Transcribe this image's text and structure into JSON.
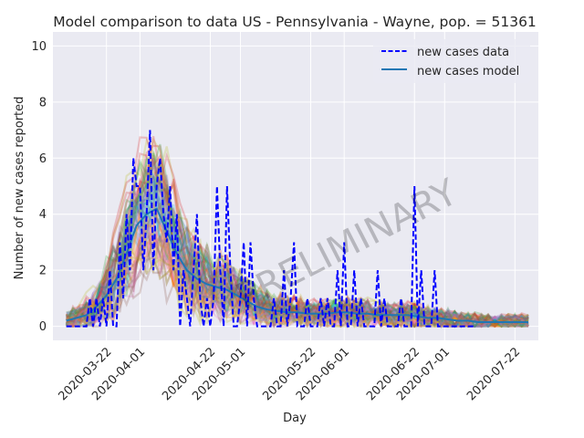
{
  "chart_data": {
    "type": "line",
    "title": "Model comparison to data US - Pennsylvania - Wayne, pop. = 51361",
    "xlabel": "Day",
    "ylabel": "Number of new cases reported",
    "x_range": [
      "2020-03-06",
      "2020-07-29"
    ],
    "ylim": [
      -0.5,
      10.5
    ],
    "y_ticks": [
      0,
      2,
      4,
      6,
      8,
      10
    ],
    "x_ticks": [
      "2020-03-22",
      "2020-04-01",
      "2020-04-22",
      "2020-05-01",
      "2020-05-22",
      "2020-06-01",
      "2020-06-22",
      "2020-07-01",
      "2020-07-22"
    ],
    "grid": true,
    "legend": "top-right",
    "watermark": "PRELIMINARY",
    "series": [
      {
        "name": "new cases data",
        "style": "dashed",
        "color": "#0000ff",
        "points": [
          [
            "2020-03-10",
            0
          ],
          [
            "2020-03-11",
            0
          ],
          [
            "2020-03-12",
            0
          ],
          [
            "2020-03-13",
            0
          ],
          [
            "2020-03-14",
            0
          ],
          [
            "2020-03-15",
            0
          ],
          [
            "2020-03-16",
            0
          ],
          [
            "2020-03-17",
            1
          ],
          [
            "2020-03-18",
            0
          ],
          [
            "2020-03-19",
            1
          ],
          [
            "2020-03-20",
            0
          ],
          [
            "2020-03-21",
            1
          ],
          [
            "2020-03-22",
            0
          ],
          [
            "2020-03-23",
            2
          ],
          [
            "2020-03-24",
            0
          ],
          [
            "2020-03-25",
            0
          ],
          [
            "2020-03-26",
            3
          ],
          [
            "2020-03-27",
            1
          ],
          [
            "2020-03-28",
            4
          ],
          [
            "2020-03-29",
            2
          ],
          [
            "2020-03-30",
            6
          ],
          [
            "2020-03-31",
            5
          ],
          [
            "2020-04-01",
            5
          ],
          [
            "2020-04-02",
            2
          ],
          [
            "2020-04-03",
            4
          ],
          [
            "2020-04-04",
            7
          ],
          [
            "2020-04-05",
            2
          ],
          [
            "2020-04-06",
            5
          ],
          [
            "2020-04-07",
            6
          ],
          [
            "2020-04-08",
            4
          ],
          [
            "2020-04-09",
            3
          ],
          [
            "2020-04-10",
            5
          ],
          [
            "2020-04-11",
            2
          ],
          [
            "2020-04-12",
            4
          ],
          [
            "2020-04-13",
            0
          ],
          [
            "2020-04-14",
            2
          ],
          [
            "2020-04-15",
            1
          ],
          [
            "2020-04-16",
            0
          ],
          [
            "2020-04-17",
            2
          ],
          [
            "2020-04-18",
            4
          ],
          [
            "2020-04-19",
            1
          ],
          [
            "2020-04-20",
            0
          ],
          [
            "2020-04-21",
            1
          ],
          [
            "2020-04-22",
            0
          ],
          [
            "2020-04-23",
            1
          ],
          [
            "2020-04-24",
            5
          ],
          [
            "2020-04-25",
            2
          ],
          [
            "2020-04-26",
            0
          ],
          [
            "2020-04-27",
            5
          ],
          [
            "2020-04-28",
            2
          ],
          [
            "2020-04-29",
            0
          ],
          [
            "2020-04-30",
            0
          ],
          [
            "2020-05-01",
            1
          ],
          [
            "2020-05-02",
            3
          ],
          [
            "2020-05-03",
            0
          ],
          [
            "2020-05-04",
            3
          ],
          [
            "2020-05-05",
            1
          ],
          [
            "2020-05-06",
            0
          ],
          [
            "2020-05-07",
            0
          ],
          [
            "2020-05-08",
            0
          ],
          [
            "2020-05-09",
            0
          ],
          [
            "2020-05-10",
            0
          ],
          [
            "2020-05-11",
            1
          ],
          [
            "2020-05-12",
            0
          ],
          [
            "2020-05-13",
            0
          ],
          [
            "2020-05-14",
            2
          ],
          [
            "2020-05-15",
            0
          ],
          [
            "2020-05-16",
            1
          ],
          [
            "2020-05-17",
            3
          ],
          [
            "2020-05-18",
            0
          ],
          [
            "2020-05-19",
            0
          ],
          [
            "2020-05-20",
            0
          ],
          [
            "2020-05-21",
            1
          ],
          [
            "2020-05-22",
            0
          ],
          [
            "2020-05-23",
            0
          ],
          [
            "2020-05-24",
            0
          ],
          [
            "2020-05-25",
            1
          ],
          [
            "2020-05-26",
            0
          ],
          [
            "2020-05-27",
            1
          ],
          [
            "2020-05-28",
            0
          ],
          [
            "2020-05-29",
            0
          ],
          [
            "2020-05-30",
            2
          ],
          [
            "2020-05-31",
            0
          ],
          [
            "2020-06-01",
            3
          ],
          [
            "2020-06-02",
            0
          ],
          [
            "2020-06-03",
            0
          ],
          [
            "2020-06-04",
            2
          ],
          [
            "2020-06-05",
            0
          ],
          [
            "2020-06-06",
            1
          ],
          [
            "2020-06-07",
            0
          ],
          [
            "2020-06-08",
            0
          ],
          [
            "2020-06-09",
            0
          ],
          [
            "2020-06-10",
            0
          ],
          [
            "2020-06-11",
            2
          ],
          [
            "2020-06-12",
            0
          ],
          [
            "2020-06-13",
            1
          ],
          [
            "2020-06-14",
            0
          ],
          [
            "2020-06-15",
            0
          ],
          [
            "2020-06-16",
            0
          ],
          [
            "2020-06-17",
            0
          ],
          [
            "2020-06-18",
            1
          ],
          [
            "2020-06-19",
            0
          ],
          [
            "2020-06-20",
            0
          ],
          [
            "2020-06-21",
            0
          ],
          [
            "2020-06-22",
            5
          ],
          [
            "2020-06-23",
            0
          ],
          [
            "2020-06-24",
            2
          ],
          [
            "2020-06-25",
            0
          ],
          [
            "2020-06-26",
            0
          ],
          [
            "2020-06-27",
            0
          ],
          [
            "2020-06-28",
            2
          ],
          [
            "2020-06-29",
            0
          ],
          [
            "2020-06-30",
            0
          ],
          [
            "2020-07-01",
            0
          ],
          [
            "2020-07-02",
            0
          ],
          [
            "2020-07-03",
            0
          ],
          [
            "2020-07-04",
            0
          ],
          [
            "2020-07-05",
            0
          ],
          [
            "2020-07-06",
            0
          ],
          [
            "2020-07-07",
            0
          ],
          [
            "2020-07-08",
            0
          ],
          [
            "2020-07-09",
            0
          ],
          [
            "2020-07-10",
            0
          ]
        ]
      },
      {
        "name": "new cases model",
        "style": "solid",
        "color": "#1f77b4",
        "points": [
          [
            "2020-03-10",
            0.2
          ],
          [
            "2020-03-13",
            0.3
          ],
          [
            "2020-03-16",
            0.4
          ],
          [
            "2020-03-19",
            0.7
          ],
          [
            "2020-03-22",
            1.1
          ],
          [
            "2020-03-25",
            1.7
          ],
          [
            "2020-03-28",
            2.6
          ],
          [
            "2020-03-31",
            3.6
          ],
          [
            "2020-04-03",
            4.0
          ],
          [
            "2020-04-06",
            4.2
          ],
          [
            "2020-04-09",
            3.4
          ],
          [
            "2020-04-12",
            2.6
          ],
          [
            "2020-04-15",
            2.0
          ],
          [
            "2020-04-18",
            1.7
          ],
          [
            "2020-04-21",
            1.5
          ],
          [
            "2020-04-24",
            1.4
          ],
          [
            "2020-04-27",
            1.3
          ],
          [
            "2020-04-30",
            1.1
          ],
          [
            "2020-05-03",
            0.9
          ],
          [
            "2020-05-06",
            0.7
          ],
          [
            "2020-05-09",
            0.6
          ],
          [
            "2020-05-12",
            0.55
          ],
          [
            "2020-05-15",
            0.5
          ],
          [
            "2020-05-18",
            0.5
          ],
          [
            "2020-05-21",
            0.45
          ],
          [
            "2020-05-24",
            0.45
          ],
          [
            "2020-05-27",
            0.45
          ],
          [
            "2020-05-30",
            0.5
          ],
          [
            "2020-06-02",
            0.5
          ],
          [
            "2020-06-05",
            0.45
          ],
          [
            "2020-06-08",
            0.45
          ],
          [
            "2020-06-11",
            0.4
          ],
          [
            "2020-06-14",
            0.4
          ],
          [
            "2020-06-17",
            0.4
          ],
          [
            "2020-06-20",
            0.4
          ],
          [
            "2020-06-23",
            0.35
          ],
          [
            "2020-06-26",
            0.3
          ],
          [
            "2020-06-29",
            0.3
          ],
          [
            "2020-07-02",
            0.25
          ],
          [
            "2020-07-05",
            0.2
          ],
          [
            "2020-07-08",
            0.2
          ],
          [
            "2020-07-11",
            0.15
          ],
          [
            "2020-07-14",
            0.15
          ],
          [
            "2020-07-17",
            0.15
          ],
          [
            "2020-07-20",
            0.15
          ],
          [
            "2020-07-23",
            0.15
          ],
          [
            "2020-07-26",
            0.15
          ]
        ]
      }
    ],
    "ensemble_colors": [
      "#1f77b4",
      "#ff7f0e",
      "#2ca02c",
      "#d62728",
      "#9467bd",
      "#8c564b",
      "#e377c2",
      "#bcbd22",
      "#17becf"
    ]
  }
}
